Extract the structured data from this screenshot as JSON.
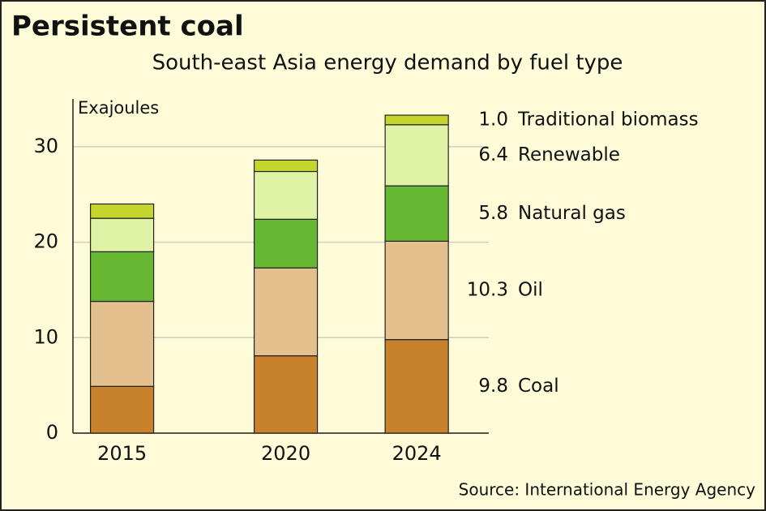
{
  "chart_data": {
    "type": "stacked-bar",
    "title": "Persistent coal",
    "subtitle": "South-east Asia energy demand by fuel type",
    "y_label": "Exajoules",
    "source": "Source: International Energy Agency",
    "x": [
      2015,
      2020,
      2024
    ],
    "xlim": [
      2013.5,
      2026.2
    ],
    "xticks": [
      2015,
      2020,
      2024
    ],
    "ylim": [
      0,
      35
    ],
    "yticks": [
      0,
      10,
      20,
      30
    ],
    "grid": true,
    "series": [
      {
        "name": "Coal",
        "color": "#c8822b",
        "values": [
          4.9,
          8.1,
          9.8
        ]
      },
      {
        "name": "Oil",
        "color": "#e4c08f",
        "values": [
          8.9,
          9.2,
          10.3
        ]
      },
      {
        "name": "Natural gas",
        "color": "#66b832",
        "values": [
          5.2,
          5.1,
          5.8
        ]
      },
      {
        "name": "Renewable",
        "color": "#dff2a6",
        "values": [
          3.5,
          5.0,
          6.4
        ]
      },
      {
        "name": "Traditional biomass",
        "color": "#c4d62c",
        "values": [
          1.5,
          1.2,
          1.0
        ],
        "value_labels": [
          null,
          null,
          "1.0"
        ]
      }
    ]
  }
}
